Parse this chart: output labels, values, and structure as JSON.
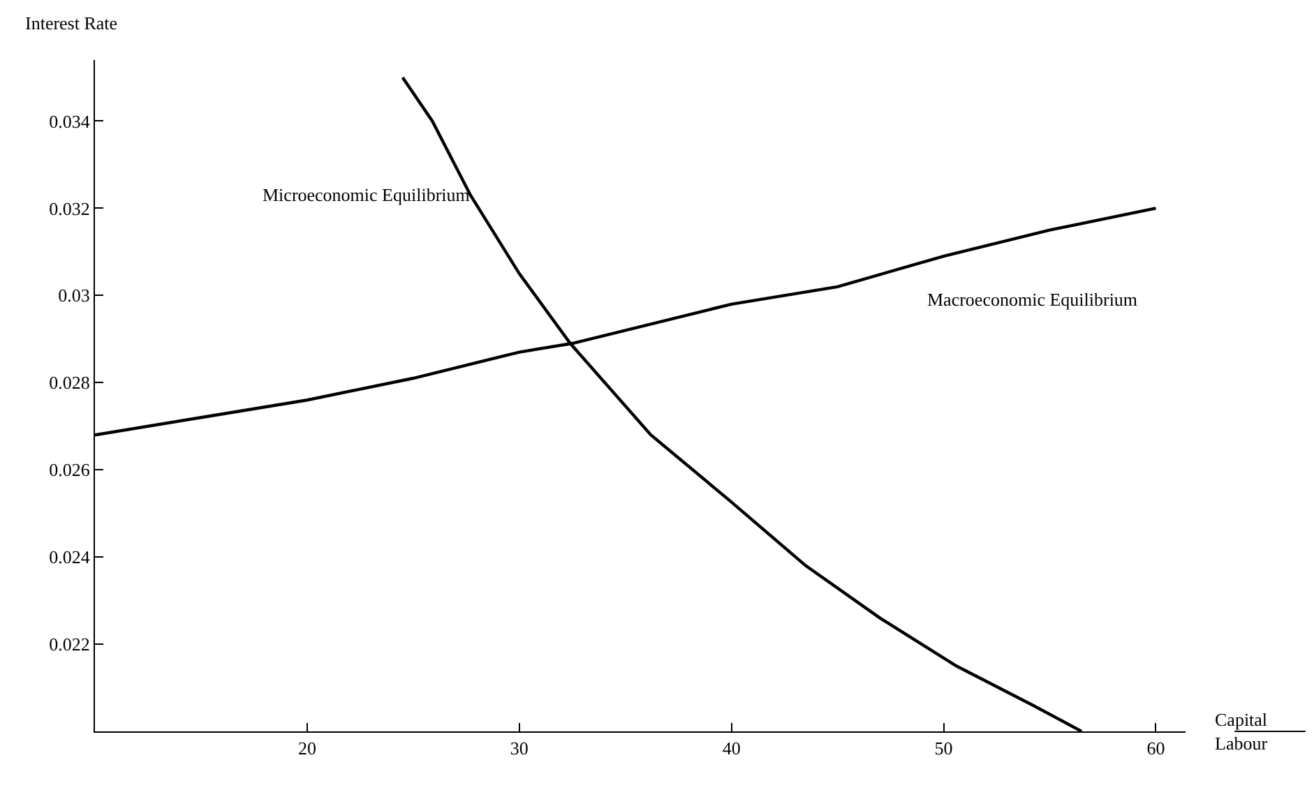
{
  "chart_data": {
    "type": "line",
    "ylabel": "Interest Rate",
    "xlabel": "Capital\nLabour",
    "xlim": [
      10,
      61.4
    ],
    "ylim": [
      0.02,
      0.0354
    ],
    "xticks": [
      20,
      30,
      40,
      50,
      60
    ],
    "yticks": [
      {
        "value": 0.022,
        "label": "0.022"
      },
      {
        "value": 0.024,
        "label": "0.024"
      },
      {
        "value": 0.026,
        "label": "0.026"
      },
      {
        "value": 0.028,
        "label": "0.028"
      },
      {
        "value": 0.03,
        "label": "0.03"
      },
      {
        "value": 0.032,
        "label": "0.032"
      },
      {
        "value": 0.034,
        "label": "0.034"
      }
    ],
    "grid": false,
    "legend": false,
    "marker": "none",
    "line_style": "solid",
    "series": [
      {
        "name": "Macroeconomic Equilibrium",
        "color": "#000000",
        "x": [
          10,
          15,
          20,
          25,
          30,
          32.5,
          40,
          45,
          50,
          55,
          60
        ],
        "values": [
          0.0268,
          0.0272,
          0.0276,
          0.0281,
          0.0287,
          0.0289,
          0.0298,
          0.0302,
          0.0309,
          0.0315,
          0.032
        ]
      },
      {
        "name": "Microeconomic Equilibrium",
        "color": "#000000",
        "x": [
          24.5,
          25.9,
          27.7,
          30,
          32.4,
          36.2,
          39.9,
          43.5,
          47,
          50.6,
          54.2,
          56.5
        ],
        "values": [
          0.035,
          0.034,
          0.0323,
          0.0305,
          0.0289,
          0.0268,
          0.0253,
          0.0238,
          0.0226,
          0.0215,
          0.0206,
          0.02
        ]
      }
    ]
  }
}
